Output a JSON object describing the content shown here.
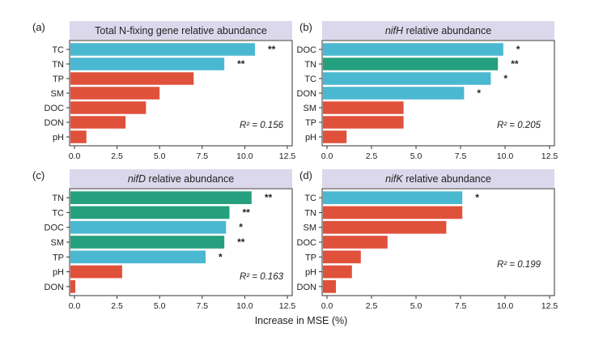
{
  "figure": {
    "xlabel": "Increase in MSE (%)",
    "colors": {
      "blue": "#4ab8d0",
      "green": "#25a07f",
      "red": "#e0513b",
      "title_bg": "#dcd8ec",
      "axis": "#333333"
    }
  },
  "chart_data": [
    {
      "type": "bar",
      "orientation": "horizontal",
      "panel_label": "(a)",
      "title": "Total N-fixing gene relative abundance",
      "title_italic": "",
      "categories": [
        "TC",
        "TN",
        "TP",
        "SM",
        "DOC",
        "DON",
        "pH"
      ],
      "values": [
        10.6,
        8.8,
        7.0,
        5.0,
        4.2,
        3.0,
        0.7
      ],
      "colors": [
        "blue",
        "blue",
        "red",
        "red",
        "red",
        "red",
        "red"
      ],
      "significance": [
        "**",
        "**",
        "",
        "",
        "",
        "",
        ""
      ],
      "r2_text": "R² = 0.156",
      "xticks": [
        "0.0",
        "2.5",
        "5.0",
        "7.5",
        "10.0",
        "12.5"
      ],
      "xlim": [
        0,
        12.5
      ]
    },
    {
      "type": "bar",
      "orientation": "horizontal",
      "panel_label": "(b)",
      "title": " relative abundance",
      "title_italic": "nifH",
      "categories": [
        "DOC",
        "TN",
        "TC",
        "DON",
        "SM",
        "TP",
        "pH"
      ],
      "values": [
        9.9,
        9.6,
        9.2,
        7.7,
        4.3,
        4.3,
        1.1
      ],
      "colors": [
        "blue",
        "green",
        "blue",
        "blue",
        "red",
        "red",
        "red"
      ],
      "significance": [
        "*",
        "**",
        "*",
        "*",
        "",
        "",
        ""
      ],
      "r2_text": "R² = 0.205",
      "xticks": [
        "0.0",
        "2.5",
        "5.0",
        "7.5",
        "10.0",
        "12.5"
      ],
      "xlim": [
        0,
        12.5
      ]
    },
    {
      "type": "bar",
      "orientation": "horizontal",
      "panel_label": "(c)",
      "title": " relative abundance",
      "title_italic": "nifD",
      "categories": [
        "TN",
        "TC",
        "DOC",
        "SM",
        "TP",
        "pH",
        "DON"
      ],
      "values": [
        10.4,
        9.1,
        8.9,
        8.8,
        7.7,
        2.8,
        0.05
      ],
      "colors": [
        "green",
        "green",
        "blue",
        "green",
        "blue",
        "red",
        "red"
      ],
      "significance": [
        "**",
        "**",
        "*",
        "**",
        "*",
        "",
        ""
      ],
      "r2_text": "R² = 0.163",
      "xticks": [
        "0.0",
        "2.5",
        "5.0",
        "7.5",
        "10.0",
        "12.5"
      ],
      "xlim": [
        0,
        12.5
      ]
    },
    {
      "type": "bar",
      "orientation": "horizontal",
      "panel_label": "(d)",
      "title": " relative abundance",
      "title_italic": "nifK",
      "categories": [
        "TC",
        "TN",
        "SM",
        "DOC",
        "TP",
        "pH",
        "DON"
      ],
      "values": [
        7.6,
        7.6,
        6.7,
        3.4,
        1.9,
        1.4,
        0.5
      ],
      "colors": [
        "blue",
        "red",
        "red",
        "red",
        "red",
        "red",
        "red"
      ],
      "significance": [
        "*",
        "",
        "",
        "",
        "",
        "",
        ""
      ],
      "r2_text": "R² = 0.199",
      "xticks": [
        "0.0",
        "2.5",
        "5.0",
        "7.5",
        "10.0",
        "12.5"
      ],
      "xlim": [
        0,
        12.5
      ]
    }
  ]
}
